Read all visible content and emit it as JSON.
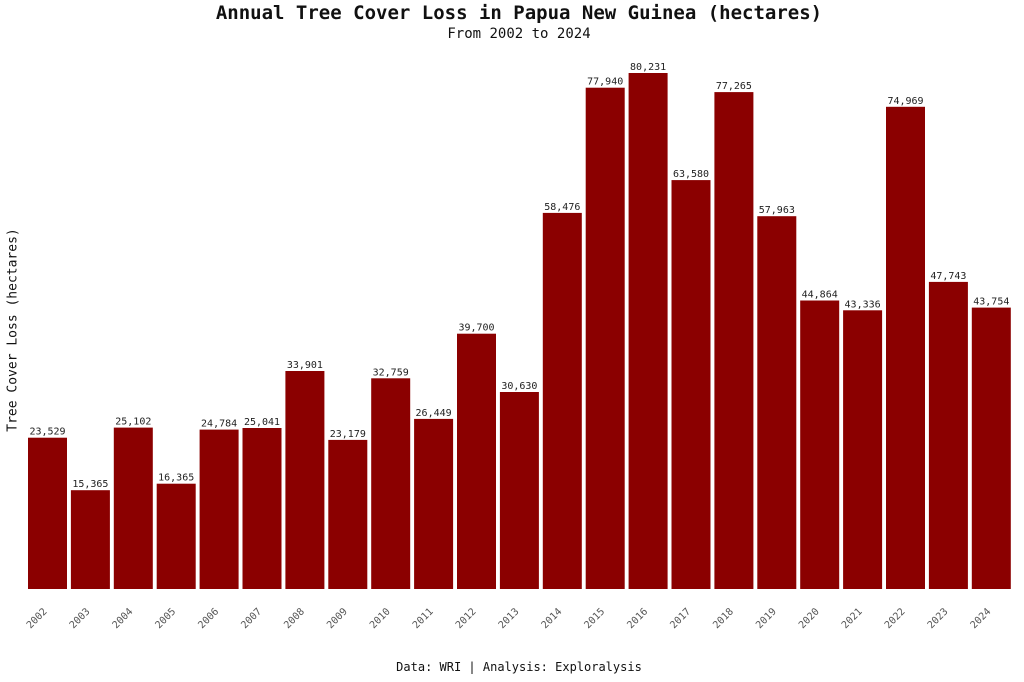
{
  "chart_data": {
    "type": "bar",
    "title": "Annual Tree Cover Loss in Papua New Guinea (hectares)",
    "subtitle": "From 2002 to 2024",
    "xlabel": "",
    "ylabel": "Tree Cover Loss (hectares)",
    "caption": "Data: WRI | Analysis: Exploralysis",
    "categories": [
      "2002",
      "2003",
      "2004",
      "2005",
      "2006",
      "2007",
      "2008",
      "2009",
      "2010",
      "2011",
      "2012",
      "2013",
      "2014",
      "2015",
      "2016",
      "2017",
      "2018",
      "2019",
      "2020",
      "2021",
      "2022",
      "2023",
      "2024"
    ],
    "values": [
      23529,
      15365,
      25102,
      16365,
      24784,
      25041,
      33901,
      23179,
      32759,
      26449,
      39700,
      30630,
      58476,
      77940,
      80231,
      63580,
      77265,
      57963,
      44864,
      43336,
      74969,
      47743,
      43754
    ],
    "data_labels": [
      "23,529",
      "15,365",
      "25,102",
      "16,365",
      "24,784",
      "25,041",
      "33,901",
      "23,179",
      "32,759",
      "26,449",
      "39,700",
      "30,630",
      "58,476",
      "77,940",
      "80,231",
      "63,580",
      "77,265",
      "57,963",
      "44,864",
      "43,336",
      "74,969",
      "47,743",
      "43,754"
    ],
    "ylim": [
      0,
      80231
    ],
    "grid": false,
    "legend": "none",
    "bar_color": "#8b0000"
  }
}
